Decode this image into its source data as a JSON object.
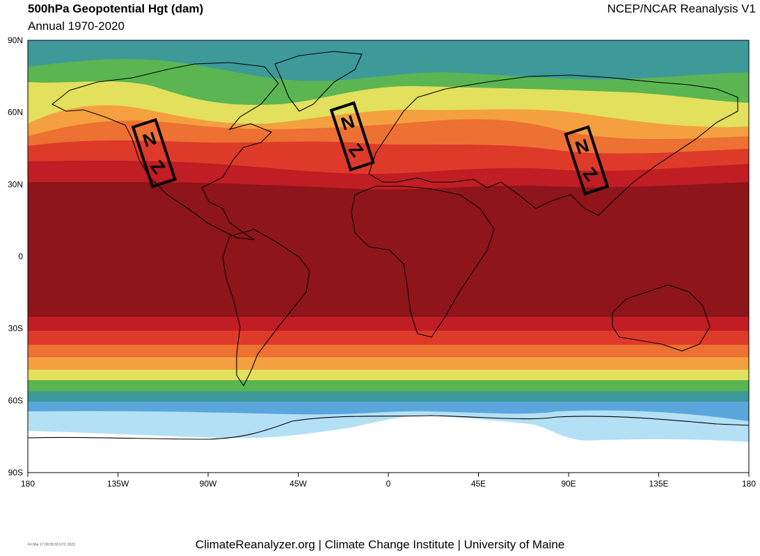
{
  "header": {
    "title": "500hPa Geopotential Hgt (dam)",
    "subtitle": "Annual 1970-2020",
    "source": "NCEP/NCAR Reanalysis V1"
  },
  "footer": {
    "timestamp": "Fri Mar 17 09:39:33 UTC 2023",
    "credits": "ClimateReanalyzer.org | Climate Change Institute | University of Maine"
  },
  "map": {
    "projection": "equirectangular",
    "lon_range": [
      -180,
      180
    ],
    "lat_range": [
      -90,
      90
    ],
    "lat_ticks": [
      {
        "lat": 90,
        "label": "90N"
      },
      {
        "lat": 60,
        "label": "60N"
      },
      {
        "lat": 30,
        "label": "30N"
      },
      {
        "lat": 0,
        "label": "0"
      },
      {
        "lat": -30,
        "label": "30S"
      },
      {
        "lat": -60,
        "label": "60S"
      },
      {
        "lat": -90,
        "label": "90S"
      }
    ],
    "lon_ticks": [
      {
        "lon": -180,
        "label": "180"
      },
      {
        "lon": -135,
        "label": "135W"
      },
      {
        "lon": -90,
        "label": "90W"
      },
      {
        "lon": -45,
        "label": "45W"
      },
      {
        "lon": 0,
        "label": "0"
      },
      {
        "lon": 45,
        "label": "45E"
      },
      {
        "lon": 90,
        "label": "90E"
      },
      {
        "lon": 135,
        "label": "135E"
      },
      {
        "lon": 180,
        "label": "180"
      }
    ],
    "colors": {
      "teal": "#3e9999",
      "green": "#5ab552",
      "yellow": "#e2e05c",
      "light_orange": "#f4a040",
      "orange": "#ec7132",
      "red_orange": "#de3a2a",
      "red": "#c01d24",
      "dark_red": "#8e1519",
      "blue": "#5aa6dc",
      "light_blue": "#b4e0f6",
      "coast": "#000000"
    },
    "annotations": [
      {
        "label": "N",
        "mark": "Z",
        "lon": -117,
        "lat": 43
      },
      {
        "label": "N",
        "mark": "Z",
        "lon": -18,
        "lat": 50
      },
      {
        "label": "N",
        "mark": "Z",
        "lon": 99,
        "lat": 40
      }
    ]
  }
}
